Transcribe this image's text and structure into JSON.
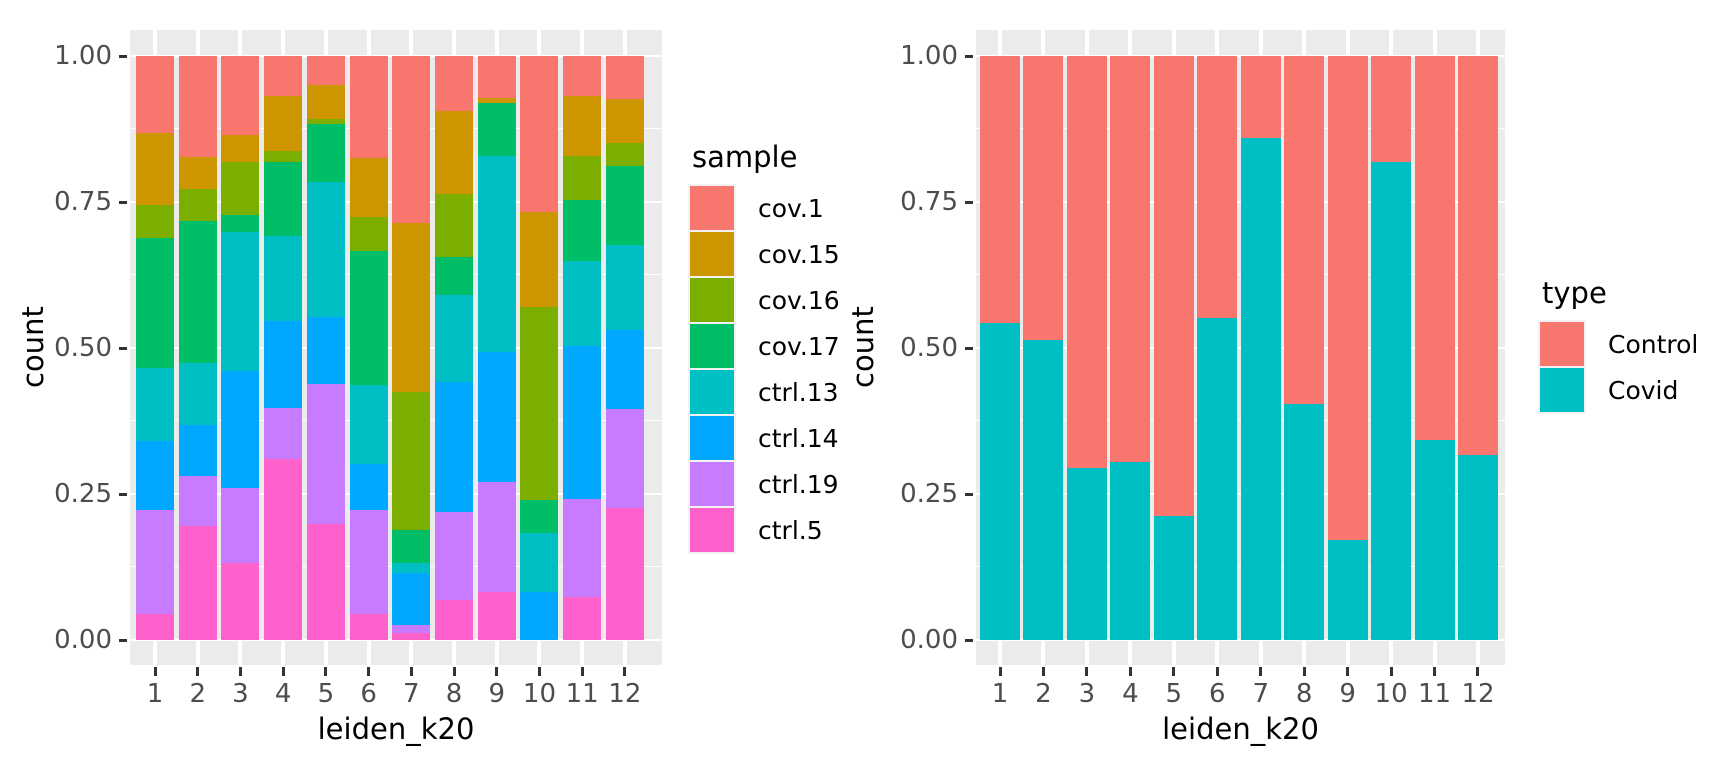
{
  "figure": {
    "background": "#FFFFFF",
    "panel_background": "#EBEBEB",
    "gridline_color": "#FFFFFF",
    "tick_color": "#333333",
    "tick_label_color": "#4D4D4D",
    "axis_title_color": "#000000"
  },
  "chart_data": [
    {
      "type": "bar",
      "stacked": true,
      "normalized": true,
      "title": "",
      "xlabel": "leiden_k20",
      "ylabel": "count",
      "ylim": [
        0,
        1
      ],
      "grid": true,
      "legend_position": "right",
      "legend_title": "sample",
      "categories": [
        "1",
        "2",
        "3",
        "4",
        "5",
        "6",
        "7",
        "8",
        "9",
        "10",
        "11",
        "12"
      ],
      "yticks": {
        "labels": [
          "0.00",
          "0.25",
          "0.50",
          "0.75",
          "1.00"
        ],
        "values": [
          0,
          0.25,
          0.5,
          0.75,
          1
        ]
      },
      "legend": [
        {
          "label": "cov.1",
          "color": "#F8766D"
        },
        {
          "label": "cov.15",
          "color": "#CD9600"
        },
        {
          "label": "cov.16",
          "color": "#7CAE00"
        },
        {
          "label": "cov.17",
          "color": "#00BE67"
        },
        {
          "label": "ctrl.13",
          "color": "#00BFC4"
        },
        {
          "label": "ctrl.14",
          "color": "#00A9FF"
        },
        {
          "label": "ctrl.19",
          "color": "#C77CFF"
        },
        {
          "label": "ctrl.5",
          "color": "#FF61CC"
        }
      ],
      "series": [
        {
          "name": "ctrl.5",
          "color": "#FF61CC",
          "values": [
            0.045,
            0.196,
            0.132,
            0.31,
            0.199,
            0.045,
            0.012,
            0.068,
            0.083,
            0.0,
            0.073,
            0.226
          ]
        },
        {
          "name": "ctrl.19",
          "color": "#C77CFF",
          "values": [
            0.177,
            0.085,
            0.128,
            0.087,
            0.239,
            0.177,
            0.013,
            0.151,
            0.188,
            0.0,
            0.168,
            0.17
          ]
        },
        {
          "name": "ctrl.14",
          "color": "#00A9FF",
          "values": [
            0.118,
            0.088,
            0.2,
            0.15,
            0.115,
            0.08,
            0.09,
            0.222,
            0.223,
            0.083,
            0.262,
            0.135
          ]
        },
        {
          "name": "ctrl.13",
          "color": "#00BFC4",
          "values": [
            0.125,
            0.105,
            0.239,
            0.144,
            0.232,
            0.135,
            0.017,
            0.149,
            0.334,
            0.101,
            0.146,
            0.146
          ]
        },
        {
          "name": "cov.17",
          "color": "#00BE67",
          "values": [
            0.223,
            0.243,
            0.028,
            0.128,
            0.099,
            0.23,
            0.056,
            0.066,
            0.092,
            0.056,
            0.104,
            0.135
          ]
        },
        {
          "name": "cov.16",
          "color": "#7CAE00",
          "values": [
            0.057,
            0.055,
            0.092,
            0.018,
            0.008,
            0.057,
            0.236,
            0.108,
            0.0,
            0.331,
            0.075,
            0.039
          ]
        },
        {
          "name": "cov.15",
          "color": "#CD9600",
          "values": [
            0.123,
            0.056,
            0.046,
            0.094,
            0.059,
            0.102,
            0.291,
            0.142,
            0.009,
            0.162,
            0.104,
            0.076
          ]
        },
        {
          "name": "cov.1",
          "color": "#F8766D",
          "values": [
            0.132,
            0.172,
            0.135,
            0.069,
            0.049,
            0.174,
            0.285,
            0.094,
            0.071,
            0.267,
            0.068,
            0.073
          ]
        }
      ]
    },
    {
      "type": "bar",
      "stacked": true,
      "normalized": true,
      "title": "",
      "xlabel": "leiden_k20",
      "ylabel": "count",
      "ylim": [
        0,
        1
      ],
      "grid": true,
      "legend_position": "right",
      "legend_title": "type",
      "categories": [
        "1",
        "2",
        "3",
        "4",
        "5",
        "6",
        "7",
        "8",
        "9",
        "10",
        "11",
        "12"
      ],
      "yticks": {
        "labels": [
          "0.00",
          "0.25",
          "0.50",
          "0.75",
          "1.00"
        ],
        "values": [
          0,
          0.25,
          0.5,
          0.75,
          1
        ]
      },
      "legend": [
        {
          "label": "Control",
          "color": "#F8766D"
        },
        {
          "label": "Covid",
          "color": "#00BFC4"
        }
      ],
      "series": [
        {
          "name": "Covid",
          "color": "#00BFC4",
          "values": [
            0.543,
            0.514,
            0.294,
            0.305,
            0.212,
            0.551,
            0.86,
            0.404,
            0.172,
            0.818,
            0.343,
            0.317
          ]
        },
        {
          "name": "Control",
          "color": "#F8766D",
          "values": [
            0.457,
            0.486,
            0.706,
            0.695,
            0.788,
            0.449,
            0.14,
            0.596,
            0.828,
            0.182,
            0.657,
            0.683
          ]
        }
      ]
    }
  ]
}
